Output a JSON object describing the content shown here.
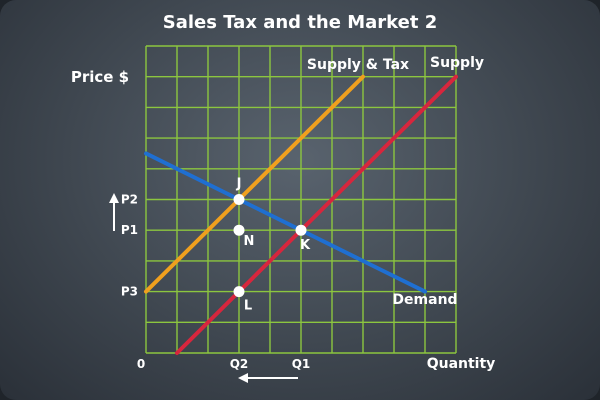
{
  "chart_data": {
    "type": "line",
    "title": "Sales Tax and the Market 2",
    "ylabel": "Price $",
    "xlabel": "Quantity",
    "grid": true,
    "xlim": [
      0,
      10
    ],
    "ylim": [
      0,
      10
    ],
    "origin_label": "0",
    "x_ticks": [
      {
        "label": "Q2",
        "value": 3
      },
      {
        "label": "Q1",
        "value": 5
      }
    ],
    "y_ticks": [
      {
        "label": "P2",
        "value": 5
      },
      {
        "label": "P1",
        "value": 4
      },
      {
        "label": "P3",
        "value": 2
      }
    ],
    "series": [
      {
        "name": "Supply & Tax",
        "color": "#f0a01e",
        "points": [
          [
            0,
            2
          ],
          [
            7,
            9
          ]
        ]
      },
      {
        "name": "Supply",
        "color": "#d7263d",
        "points": [
          [
            1,
            0
          ],
          [
            10,
            9
          ]
        ]
      },
      {
        "name": "Demand",
        "color": "#1f6fd1",
        "points": [
          [
            0,
            6.5
          ],
          [
            9,
            2
          ]
        ]
      }
    ],
    "points": [
      {
        "label": "J",
        "x": 3,
        "y": 5,
        "filled": true
      },
      {
        "label": "N",
        "x": 3,
        "y": 4,
        "filled": true
      },
      {
        "label": "K",
        "x": 5,
        "y": 4,
        "filled": true
      },
      {
        "label": "L",
        "x": 3,
        "y": 2,
        "filled": true
      }
    ],
    "arrows": [
      {
        "meaning": "price increase",
        "direction": "up"
      },
      {
        "meaning": "quantity decrease",
        "direction": "left"
      }
    ],
    "colors": {
      "grid": "#8cc63f",
      "text": "#ffffff"
    }
  }
}
